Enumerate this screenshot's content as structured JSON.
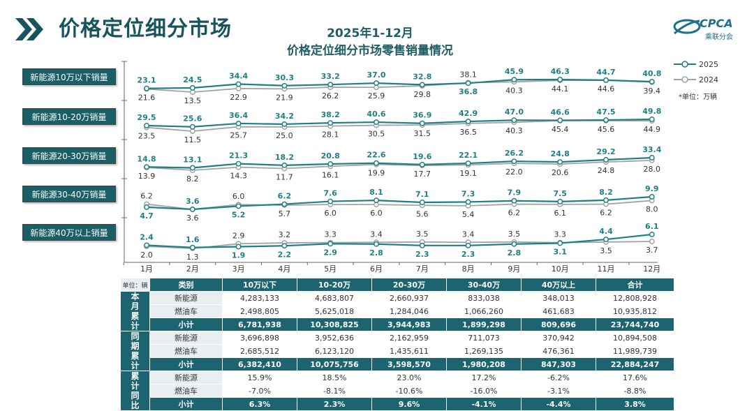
{
  "page_title": "价格定位细分市场",
  "chart_title_line1": "2025年1-12月",
  "chart_title_line2": "价格定位细分市场零售销量情况",
  "logo": {
    "text": "CPCA",
    "subtext": "乘联分会"
  },
  "legend": {
    "series_2025": "2025",
    "series_2024": "2024",
    "note": "*单位：万辆"
  },
  "colors": {
    "series_2025": "#1f7f86",
    "series_2024": "#a3a3a3",
    "label_2025": "#1f7f86",
    "label_2024": "#333333",
    "header": "#1b6470"
  },
  "chart_data": {
    "type": "line",
    "x": [
      "1月",
      "2月",
      "3月",
      "4月",
      "5月",
      "6月",
      "7月",
      "8月",
      "9月",
      "10月",
      "11月",
      "12月"
    ],
    "unit": "万辆",
    "panels": [
      {
        "label": "新能源10万以下销量",
        "series": [
          {
            "name": "2025",
            "values": [
              23.1,
              24.5,
              34.4,
              30.3,
              33.2,
              37.0,
              32.8,
              36.8,
              45.9,
              46.3,
              44.7,
              40.8
            ]
          },
          {
            "name": "2024",
            "values": [
              21.6,
              13.5,
              22.9,
              21.9,
              26.2,
              25.9,
              29.8,
              38.1,
              40.3,
              44.1,
              44.6,
              39.4
            ]
          }
        ]
      },
      {
        "label": "新能源10-20万销量",
        "series": [
          {
            "name": "2025",
            "values": [
              29.5,
              25.6,
              36.4,
              34.2,
              38.2,
              40.6,
              36.9,
              42.9,
              47.0,
              46.6,
              47.5,
              49.8
            ]
          },
          {
            "name": "2024",
            "values": [
              23.5,
              11.5,
              25.7,
              25.0,
              28.1,
              30.5,
              31.5,
              36.5,
              40.3,
              45.4,
              45.6,
              44.9
            ]
          }
        ]
      },
      {
        "label": "新能源20-30万销量",
        "series": [
          {
            "name": "2025",
            "values": [
              14.8,
              13.1,
              21.3,
              18.2,
              20.8,
              22.6,
              19.6,
              22.1,
              26.2,
              24.8,
              29.2,
              33.4
            ]
          },
          {
            "name": "2024",
            "values": [
              13.9,
              8.2,
              14.3,
              11.7,
              16.1,
              19.9,
              17.7,
              19.1,
              22.0,
              20.6,
              24.8,
              28.0
            ]
          }
        ]
      },
      {
        "label": "新能源30-40万销量",
        "series": [
          {
            "name": "2025",
            "values": [
              4.7,
              3.6,
              5.2,
              6.2,
              7.6,
              8.1,
              7.1,
              7.3,
              7.9,
              7.5,
              8.2,
              9.9
            ]
          },
          {
            "name": "2024",
            "values": [
              6.2,
              3.6,
              6.0,
              5.7,
              6.0,
              6.0,
              5.6,
              5.4,
              6.2,
              6.1,
              6.2,
              8.0
            ]
          }
        ]
      },
      {
        "label": "新能源40万以上销量",
        "series": [
          {
            "name": "2025",
            "values": [
              2.4,
              1.6,
              1.9,
              2.2,
              2.9,
              2.8,
              2.3,
              2.3,
              2.8,
              3.1,
              4.4,
              6.1
            ]
          },
          {
            "name": "2024",
            "values": [
              2.0,
              1.3,
              2.9,
              3.2,
              3.3,
              3.4,
              3.5,
              3.4,
              3.5,
              3.3,
              3.5,
              3.7
            ]
          }
        ]
      }
    ]
  },
  "table": {
    "unit_label": "单位：辆",
    "headers": [
      "类别",
      "10万以下",
      "10-20万",
      "20-30万",
      "30-40万",
      "40万以上",
      "合计"
    ],
    "groups": [
      {
        "name": "本月累计",
        "rows": [
          {
            "category": "新能源",
            "values": [
              "4,283,133",
              "4,683,807",
              "2,660,937",
              "833,038",
              "348,013",
              "12,808,928"
            ]
          },
          {
            "category": "燃油车",
            "values": [
              "2,498,805",
              "5,625,018",
              "1,284,046",
              "1,066,260",
              "461,683",
              "10,935,812"
            ]
          },
          {
            "category": "小计",
            "values": [
              "6,781,938",
              "10,308,825",
              "3,944,983",
              "1,899,298",
              "809,696",
              "23,744,740"
            ]
          }
        ]
      },
      {
        "name": "同期累计",
        "rows": [
          {
            "category": "新能源",
            "values": [
              "3,696,898",
              "3,952,636",
              "2,162,959",
              "711,073",
              "370,942",
              "10,894,508"
            ]
          },
          {
            "category": "燃油车",
            "values": [
              "2,685,512",
              "6,123,120",
              "1,435,611",
              "1,269,135",
              "476,361",
              "11,989,739"
            ]
          },
          {
            "category": "小计",
            "values": [
              "6,382,410",
              "10,075,756",
              "3,598,570",
              "1,980,208",
              "847,303",
              "22,884,247"
            ]
          }
        ]
      },
      {
        "name": "累计同比",
        "rows": [
          {
            "category": "新能源",
            "values": [
              "15.9%",
              "18.5%",
              "23.0%",
              "17.2%",
              "-6.2%",
              "17.6%"
            ]
          },
          {
            "category": "燃油车",
            "values": [
              "-7.0%",
              "-8.1%",
              "-10.6%",
              "-16.0%",
              "-3.1%",
              "-8.8%"
            ]
          },
          {
            "category": "小计",
            "values": [
              "6.3%",
              "2.3%",
              "9.6%",
              "-4.1%",
              "-4.4%",
              "3.8%"
            ]
          }
        ]
      }
    ]
  }
}
